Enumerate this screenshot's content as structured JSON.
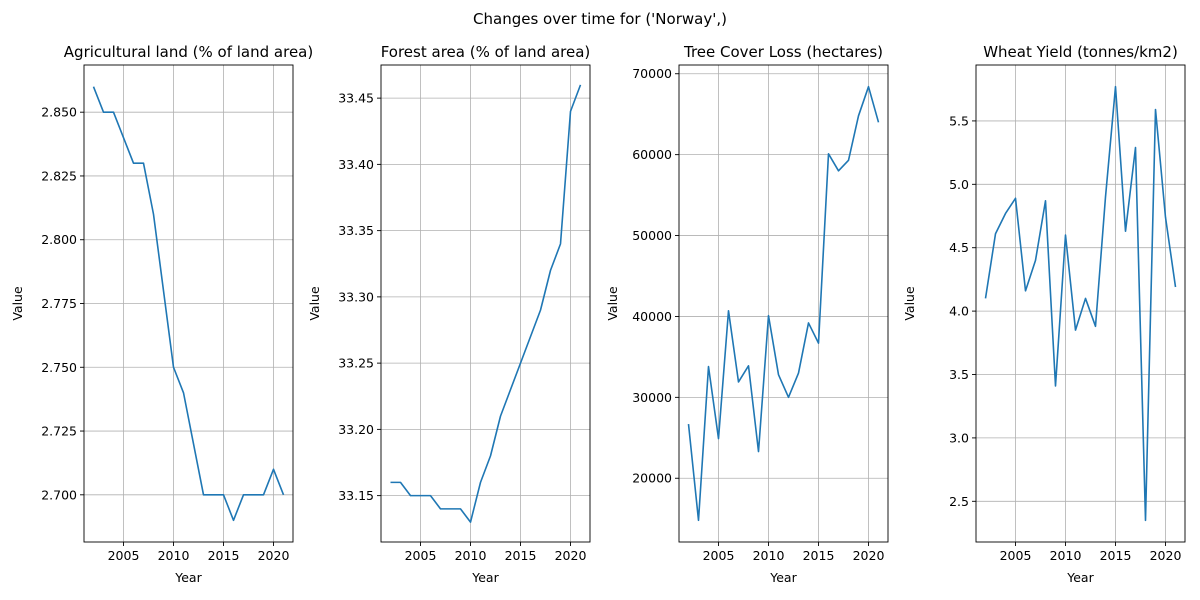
{
  "figure": {
    "suptitle": "Changes over time for ('Norway',)",
    "line_color": "#1f77b4"
  },
  "chart_data": [
    {
      "type": "line",
      "title": "Agricultural land (% of land area)",
      "xlabel": "Year",
      "ylabel": "Value",
      "grid": true,
      "x": [
        2002,
        2003,
        2004,
        2005,
        2006,
        2007,
        2008,
        2009,
        2010,
        2011,
        2012,
        2013,
        2014,
        2015,
        2016,
        2017,
        2018,
        2019,
        2020,
        2021
      ],
      "y": [
        2.86,
        2.85,
        2.85,
        2.84,
        2.83,
        2.83,
        2.81,
        2.78,
        2.75,
        2.74,
        2.72,
        2.7,
        2.7,
        2.7,
        2.69,
        2.7,
        2.7,
        2.7,
        2.71,
        2.7
      ],
      "xlim": [
        2001.05,
        2021.95
      ],
      "ylim": [
        2.6815,
        2.8685
      ],
      "xticks": [
        2005,
        2010,
        2015,
        2020
      ],
      "xtick_labels": [
        "2005",
        "2010",
        "2015",
        "2020"
      ],
      "yticks": [
        2.7,
        2.725,
        2.75,
        2.775,
        2.8,
        2.825,
        2.85
      ],
      "ytick_labels": [
        "2.700",
        "2.725",
        "2.750",
        "2.775",
        "2.800",
        "2.825",
        "2.850"
      ]
    },
    {
      "type": "line",
      "title": "Forest area (% of land area)",
      "xlabel": "Year",
      "ylabel": "Value",
      "grid": true,
      "x": [
        2002,
        2003,
        2004,
        2005,
        2006,
        2007,
        2008,
        2009,
        2010,
        2011,
        2012,
        2013,
        2014,
        2015,
        2016,
        2017,
        2018,
        2019,
        2020,
        2021
      ],
      "y": [
        33.16,
        33.16,
        33.15,
        33.15,
        33.15,
        33.14,
        33.14,
        33.14,
        33.13,
        33.16,
        33.18,
        33.21,
        33.23,
        33.25,
        33.27,
        33.29,
        33.32,
        33.34,
        33.44,
        33.46
      ],
      "xlim": [
        2001.05,
        2021.95
      ],
      "ylim": [
        33.115,
        33.475
      ],
      "xticks": [
        2005,
        2010,
        2015,
        2020
      ],
      "xtick_labels": [
        "2005",
        "2010",
        "2015",
        "2020"
      ],
      "yticks": [
        33.15,
        33.2,
        33.25,
        33.3,
        33.35,
        33.4,
        33.45
      ],
      "ytick_labels": [
        "33.15",
        "33.20",
        "33.25",
        "33.30",
        "33.35",
        "33.40",
        "33.45"
      ]
    },
    {
      "type": "line",
      "title": "Tree Cover Loss (hectares)",
      "xlabel": "Year",
      "ylabel": "Value",
      "grid": true,
      "x": [
        2002,
        2003,
        2004,
        2005,
        2006,
        2007,
        2008,
        2009,
        2010,
        2011,
        2012,
        2013,
        2014,
        2015,
        2016,
        2017,
        2018,
        2019,
        2020,
        2021
      ],
      "y": [
        26700,
        14800,
        33800,
        24900,
        40700,
        31900,
        33900,
        23300,
        40100,
        32800,
        30000,
        33000,
        39200,
        36700,
        60100,
        58000,
        59300,
        64800,
        68400,
        64000
      ],
      "xlim": [
        2001.05,
        2021.95
      ],
      "ylim": [
        12120,
        71080
      ],
      "xticks": [
        2005,
        2010,
        2015,
        2020
      ],
      "xtick_labels": [
        "2005",
        "2010",
        "2015",
        "2020"
      ],
      "yticks": [
        20000,
        30000,
        40000,
        50000,
        60000,
        70000
      ],
      "ytick_labels": [
        "20000",
        "30000",
        "40000",
        "50000",
        "60000",
        "70000"
      ]
    },
    {
      "type": "line",
      "title": "Wheat Yield (tonnes/km2)",
      "xlabel": "Year",
      "ylabel": "Value",
      "grid": true,
      "x": [
        2002,
        2003,
        2004,
        2005,
        2006,
        2007,
        2008,
        2009,
        2010,
        2011,
        2012,
        2013,
        2014,
        2015,
        2016,
        2017,
        2018,
        2019,
        2020,
        2021
      ],
      "y": [
        4.1,
        4.61,
        4.77,
        4.89,
        4.16,
        4.4,
        4.87,
        3.41,
        4.6,
        3.85,
        4.1,
        3.88,
        4.9,
        5.77,
        4.63,
        5.29,
        2.35,
        5.59,
        4.74,
        4.19
      ],
      "xlim": [
        2001.05,
        2021.95
      ],
      "ylim": [
        2.179,
        5.941
      ],
      "xticks": [
        2005,
        2010,
        2015,
        2020
      ],
      "xtick_labels": [
        "2005",
        "2010",
        "2015",
        "2020"
      ],
      "yticks": [
        2.5,
        3.0,
        3.5,
        4.0,
        4.5,
        5.0,
        5.5
      ],
      "ytick_labels": [
        "2.5",
        "3.0",
        "3.5",
        "4.0",
        "4.5",
        "5.0",
        "5.5"
      ]
    }
  ]
}
